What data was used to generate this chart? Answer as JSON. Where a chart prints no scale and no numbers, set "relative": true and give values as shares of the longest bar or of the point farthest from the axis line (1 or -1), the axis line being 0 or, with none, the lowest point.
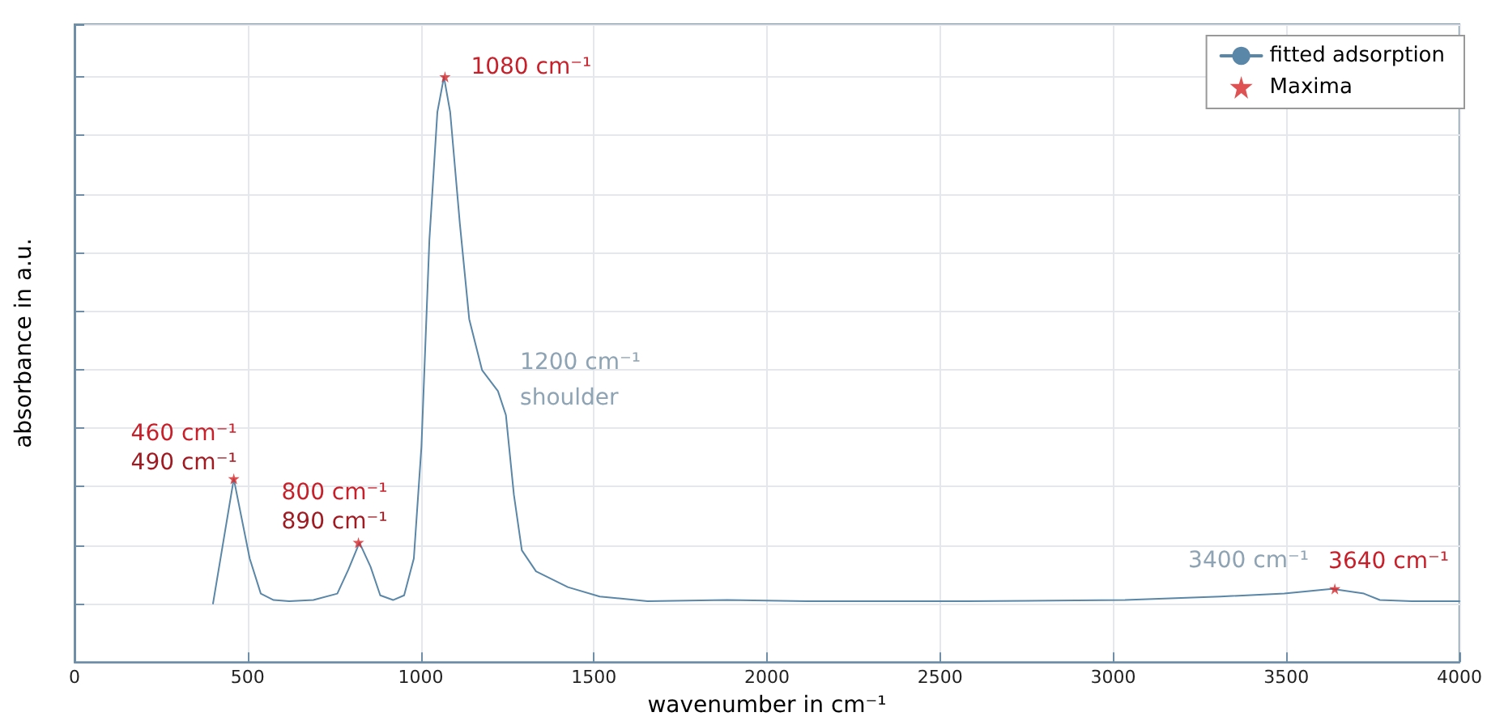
{
  "chart_data": {
    "type": "line",
    "relative": true,
    "xlabel": "wavenumber in cm⁻¹",
    "ylabel": "absorbance in a.u.",
    "xlim": [
      0,
      4000
    ],
    "xticks": [
      0,
      500,
      1000,
      1500,
      2000,
      2500,
      3000,
      3500,
      4000
    ],
    "grid": true,
    "legend": "top right",
    "series": [
      {
        "name": "fitted adsorption",
        "color": "#5a87a8",
        "marker": "none",
        "line_style": "solid",
        "x": [
          400,
          460,
          506,
          538,
          575,
          620,
          690,
          759,
          791,
          823,
          855,
          883,
          920,
          952,
          980,
          1002,
          1025,
          1048,
          1067,
          1085,
          1113,
          1140,
          1177,
          1223,
          1246,
          1269,
          1292,
          1333,
          1425,
          1517,
          1655,
          1885,
          2115,
          2575,
          3034,
          3310,
          3494,
          3632,
          3724,
          3770,
          3862,
          4000
        ],
        "values": [
          0.1,
          0.313,
          0.177,
          0.117,
          0.106,
          0.104,
          0.106,
          0.117,
          0.158,
          0.204,
          0.163,
          0.114,
          0.106,
          0.114,
          0.177,
          0.368,
          0.722,
          0.94,
          1.0,
          0.94,
          0.749,
          0.586,
          0.499,
          0.463,
          0.422,
          0.286,
          0.191,
          0.155,
          0.128,
          0.112,
          0.104,
          0.106,
          0.104,
          0.104,
          0.106,
          0.112,
          0.117,
          0.125,
          0.117,
          0.106,
          0.104,
          0.104
        ]
      },
      {
        "name": "Maxima",
        "type": "scatter",
        "color": "#d62728",
        "marker": "star",
        "x": [
          460,
          820,
          1070,
          3640
        ],
        "values": [
          0.313,
          0.204,
          1.0,
          0.125
        ]
      }
    ],
    "annotations": [
      {
        "text": "1080 cm⁻¹",
        "x": 1070,
        "y": 1.0
      },
      {
        "text": "460 cm⁻¹",
        "x": 460,
        "y": 0.313
      },
      {
        "text": "490 cm⁻¹",
        "x": 460,
        "y": 0.313
      },
      {
        "text": "800 cm⁻¹",
        "x": 820,
        "y": 0.204
      },
      {
        "text": "890 cm⁻¹",
        "x": 820,
        "y": 0.204
      },
      {
        "text": "1200 cm⁻¹",
        "x": 1240,
        "y": 0.44
      },
      {
        "text": "shoulder",
        "x": 1240,
        "y": 0.44
      },
      {
        "text": "3400 cm⁻¹",
        "x": 3400,
        "y": 0.115
      },
      {
        "text": "3640 cm⁻¹",
        "x": 3640,
        "y": 0.125
      }
    ]
  }
}
